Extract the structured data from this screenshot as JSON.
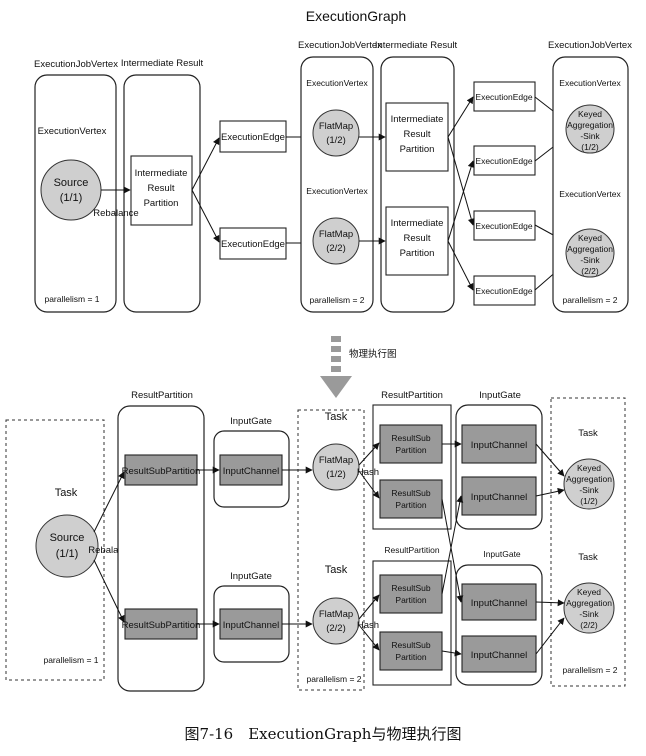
{
  "title": "ExecutionGraph",
  "caption": "图7-16　ExecutionGraph与物理执行图",
  "arrow_label": "物理执行图",
  "top": {
    "job_vertex_label": "ExecutionJobVertex",
    "intermediate_result_label": "Intermediate Result",
    "execution_vertex_label": "ExecutionVertex",
    "execution_edge_label": "ExecutionEdge",
    "intermediate_partition": [
      "Intermediate",
      "Result",
      "Partition"
    ],
    "source": [
      "Source",
      "(1/1)"
    ],
    "rebalance": "Rebalance",
    "flatmap_1": [
      "FlatMap",
      "(1/2)"
    ],
    "flatmap_2": [
      "FlatMap",
      "(2/2)"
    ],
    "sink_1": [
      "Keyed",
      "Aggregation",
      "-Sink",
      "(1/2)"
    ],
    "sink_2": [
      "Keyed",
      "Aggregation",
      "-Sink",
      "(2/2)"
    ],
    "parallelism_1": "parallelism = 1",
    "parallelism_2": "parallelism = 2"
  },
  "bottom": {
    "task_label": "Task",
    "result_partition_label": "ResultPartition",
    "input_gate_label": "InputGate",
    "result_subpartition": "ResultSubPartition",
    "result_sub": [
      "ResultSub",
      "Partition"
    ],
    "input_channel": "InputChannel",
    "hash": "Hash",
    "rebalance": "Rebalance",
    "source": [
      "Source",
      "(1/1)"
    ],
    "flatmap_1": [
      "FlatMap",
      "(1/2)"
    ],
    "flatmap_2": [
      "FlatMap",
      "(2/2)"
    ],
    "sink_1": [
      "Keyed",
      "Aggregation",
      "-Sink",
      "(1/2)"
    ],
    "sink_2": [
      "Keyed",
      "Aggregation",
      "-Sink",
      "(2/2)"
    ],
    "parallelism_1": "parallelism = 1",
    "parallelism_2": "parallelism = 2"
  }
}
